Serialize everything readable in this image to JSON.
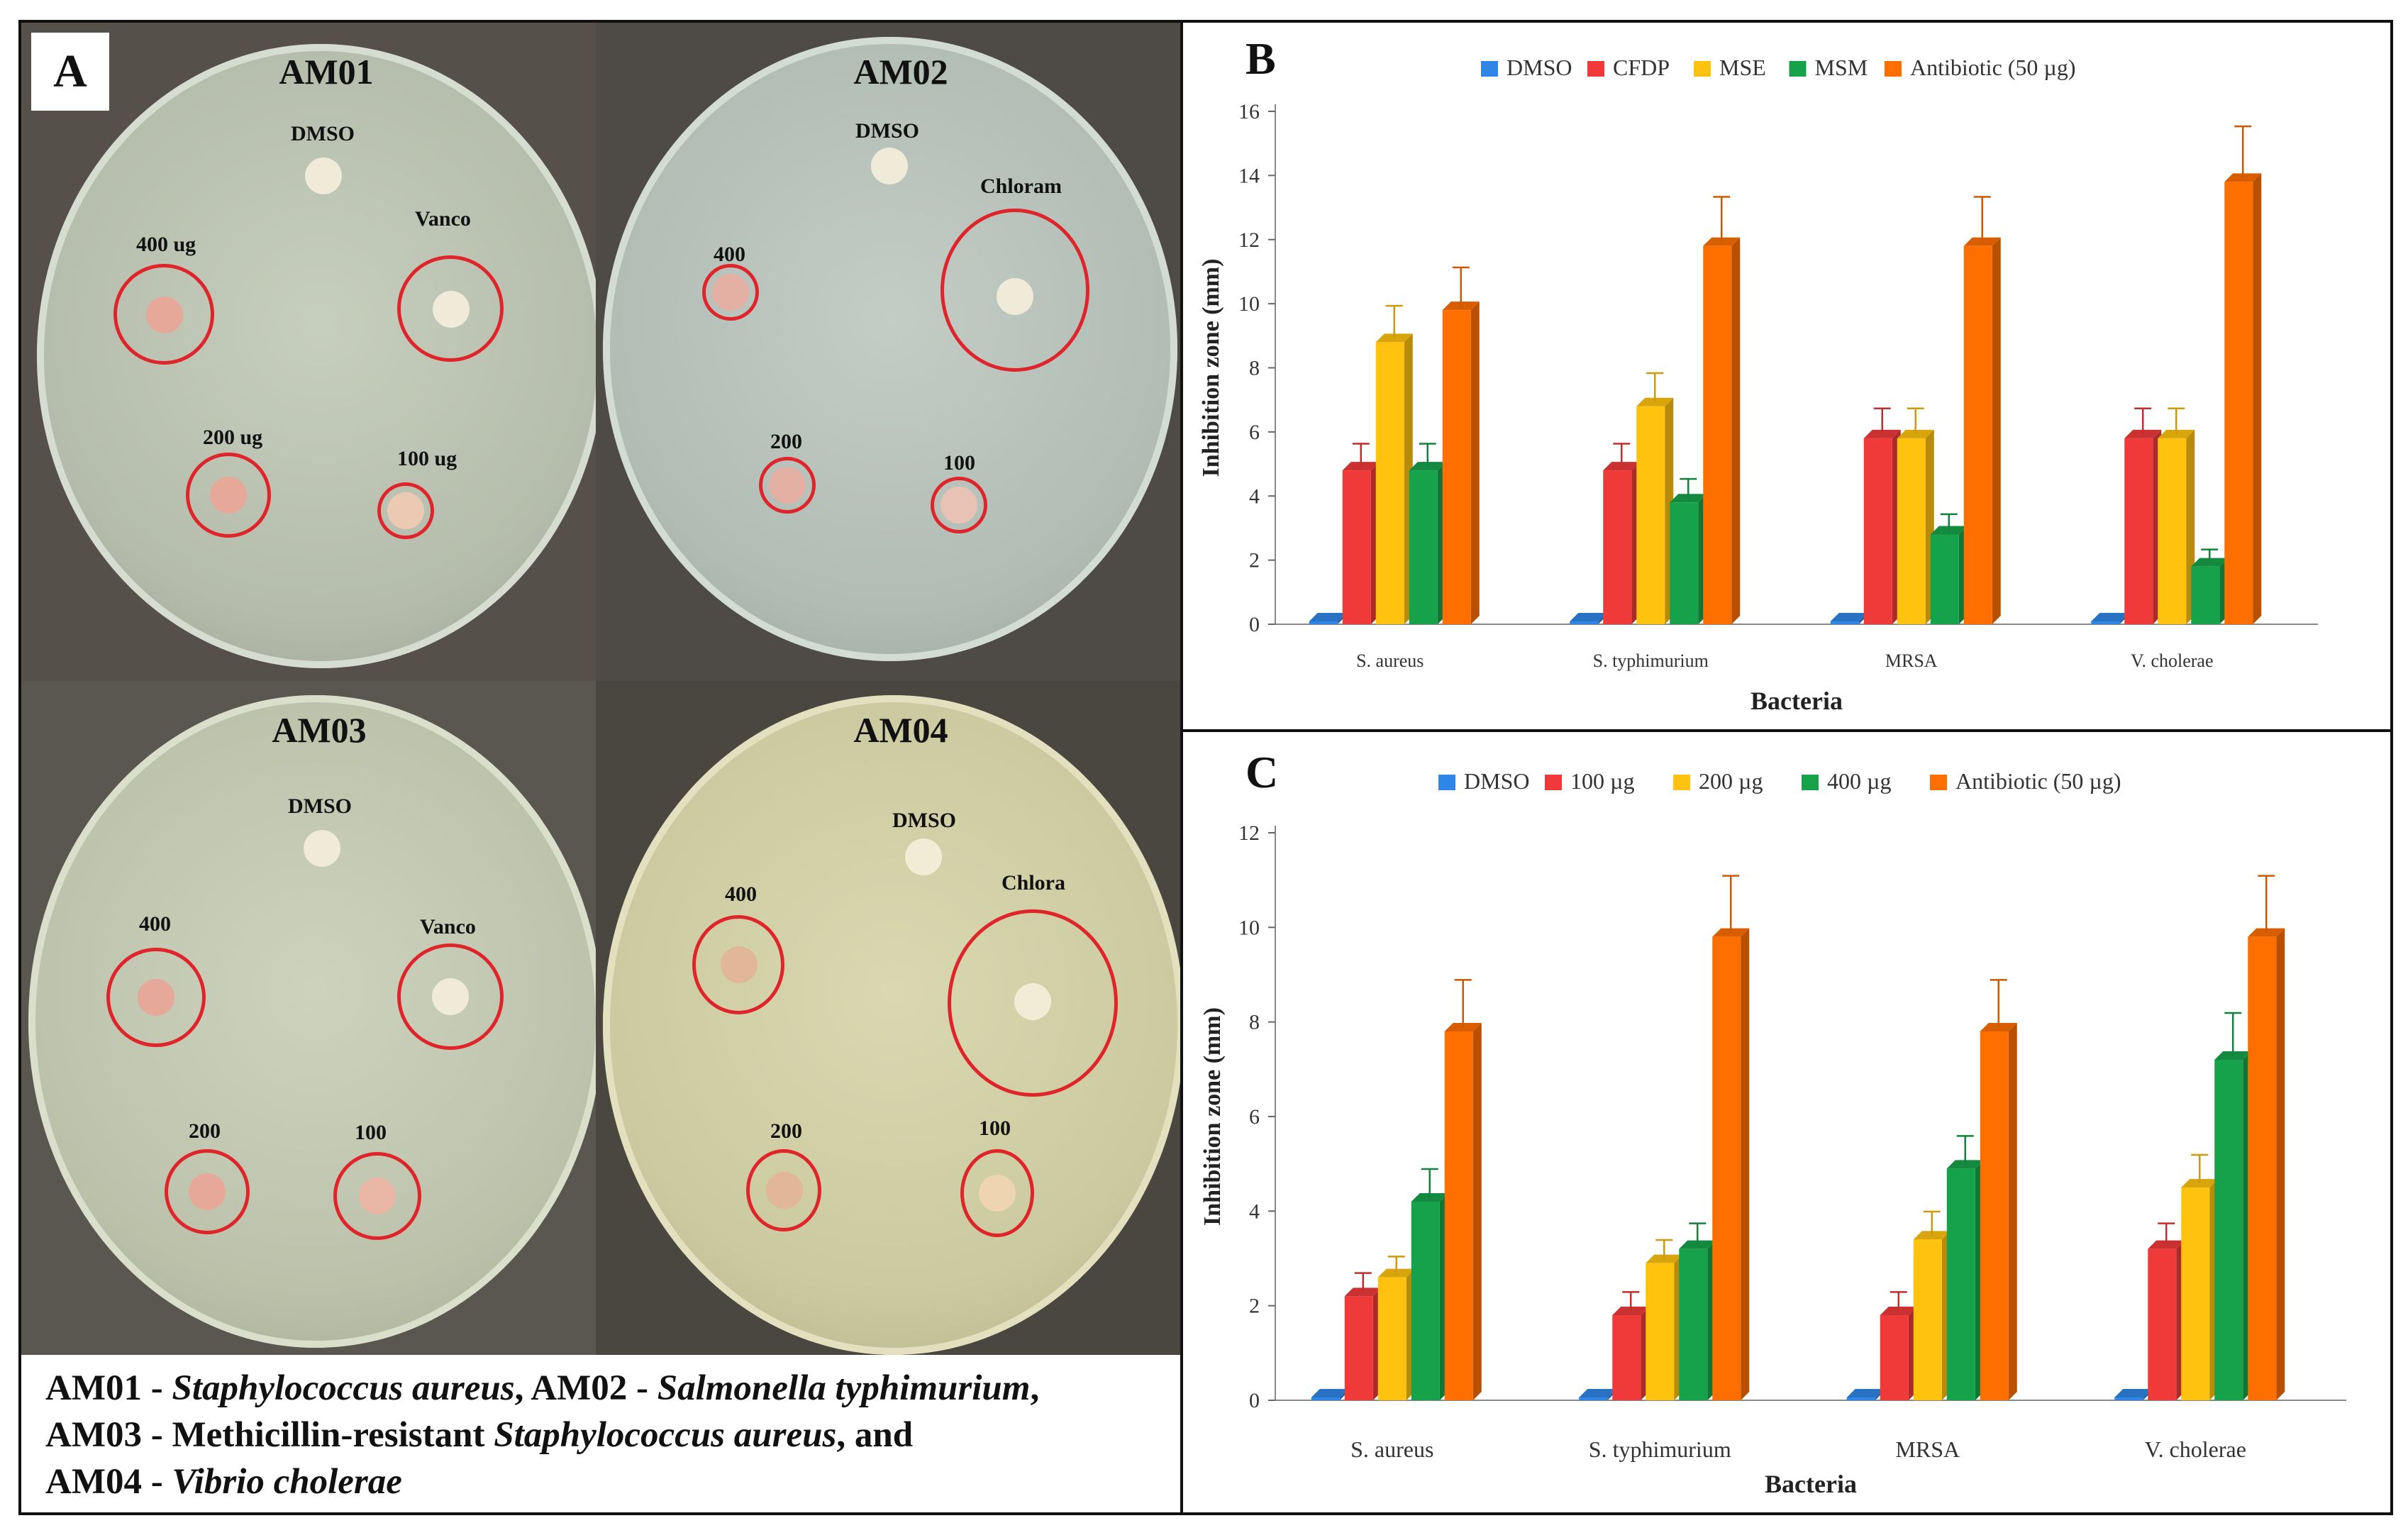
{
  "panel_a": {
    "letter": "A",
    "caption": {
      "line1_a": "AM01 - ",
      "line1_b": "Staphylococcus aureus",
      "line1_c": ", AM02 - ",
      "line1_d": "Salmonella typhimurium",
      "line1_e": ",",
      "line2_a": "AM03 - Methicillin-resistant ",
      "line2_b": "Staphylococcus aureus",
      "line2_c": ", and",
      "line3_a": "AM04 - ",
      "line3_b": "Vibrio cholerae"
    },
    "plates": [
      {
        "title": "AM01",
        "dmso": "DMSO",
        "antibiotic": "Vanco",
        "d400": "400 ug",
        "d200": "200 ug",
        "d100": "100 ug"
      },
      {
        "title": "AM02",
        "dmso": "DMSO",
        "antibiotic": "Chloram",
        "d400": "400",
        "d200": "200",
        "d100": "100"
      },
      {
        "title": "AM03",
        "dmso": "DMSO",
        "antibiotic": "Vanco",
        "d400": "400",
        "d200": "200",
        "d100": "100"
      },
      {
        "title": "AM04",
        "dmso": "DMSO",
        "antibiotic": "Chlora",
        "d400": "400",
        "d200": "200",
        "d100": "100"
      }
    ]
  },
  "chart_data": [
    {
      "panel": "B",
      "type": "bar",
      "xlabel": "Bacteria",
      "ylabel": "Inhibition zone (mm)",
      "ylim": [
        0,
        16
      ],
      "yticks": [
        0,
        2,
        4,
        6,
        8,
        10,
        12,
        14,
        16
      ],
      "categories": [
        "S. aureus",
        "S. typhimurium",
        "MRSA",
        "V. cholerae"
      ],
      "legend_position": "top",
      "series": [
        {
          "name": "DMSO",
          "color": "#2f86e6",
          "values": [
            0,
            0,
            0,
            0
          ],
          "errors": [
            0,
            0,
            0,
            0
          ]
        },
        {
          "name": "CFDP",
          "color": "#f03a3a",
          "values": [
            4.8,
            4.8,
            5.8,
            5.8
          ],
          "errors": [
            0.7,
            0.7,
            0.8,
            0.8
          ]
        },
        {
          "name": "MSE",
          "color": "#ffc20e",
          "values": [
            8.8,
            6.8,
            5.8,
            5.8
          ],
          "errors": [
            1.0,
            0.9,
            0.8,
            0.8
          ]
        },
        {
          "name": "MSM",
          "color": "#16a24a",
          "values": [
            4.8,
            3.8,
            2.8,
            1.8
          ],
          "errors": [
            0.7,
            0.6,
            0.5,
            0.4
          ]
        },
        {
          "name": "Antibiotic (50 µg)",
          "color": "#ff6f00",
          "values": [
            9.8,
            11.8,
            11.8,
            13.8
          ],
          "errors": [
            1.2,
            1.4,
            1.4,
            1.6
          ]
        }
      ]
    },
    {
      "panel": "C",
      "type": "bar",
      "xlabel": "Bacteria",
      "ylabel": "Inhibition zone (mm)",
      "ylim": [
        0,
        12
      ],
      "yticks": [
        0,
        2,
        4,
        6,
        8,
        10,
        12
      ],
      "categories": [
        "S. aureus",
        "S. typhimurium",
        "MRSA",
        "V. cholerae"
      ],
      "legend_position": "top",
      "series": [
        {
          "name": "DMSO",
          "color": "#2f86e6",
          "values": [
            0,
            0,
            0,
            0
          ],
          "errors": [
            0,
            0,
            0,
            0
          ]
        },
        {
          "name": "100 µg",
          "color": "#f03a3a",
          "values": [
            2.2,
            1.8,
            1.8,
            3.2
          ],
          "errors": [
            0.4,
            0.4,
            0.4,
            0.45
          ]
        },
        {
          "name": "200 µg",
          "color": "#ffc20e",
          "values": [
            2.6,
            2.9,
            3.4,
            4.5
          ],
          "errors": [
            0.35,
            0.4,
            0.5,
            0.6
          ]
        },
        {
          "name": "400 µg",
          "color": "#16a24a",
          "values": [
            4.2,
            3.2,
            4.9,
            7.2
          ],
          "errors": [
            0.6,
            0.45,
            0.6,
            0.9
          ]
        },
        {
          "name": "Antibiotic (50 µg)",
          "color": "#ff6f00",
          "values": [
            7.8,
            9.8,
            7.8,
            9.8
          ],
          "errors": [
            1.0,
            1.2,
            1.0,
            1.2
          ]
        }
      ]
    }
  ]
}
